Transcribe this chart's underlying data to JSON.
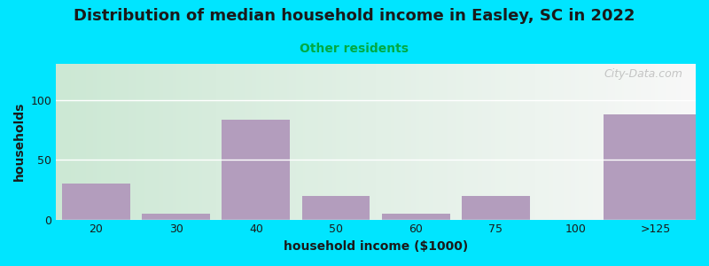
{
  "title": "Distribution of median household income in Easley, SC in 2022",
  "subtitle": "Other residents",
  "xlabel": "household income ($1000)",
  "ylabel": "households",
  "title_color": "#1a1a1a",
  "subtitle_color": "#00aa44",
  "xlabel_color": "#1a1a1a",
  "ylabel_color": "#1a1a1a",
  "bar_color": "#b39dbd",
  "background_outer": "#00e5ff",
  "background_inner_left": "#cce8d4",
  "background_inner_right": "#f8f8f8",
  "categories": [
    "20",
    "30",
    "40",
    "50",
    "60",
    "75",
    "100",
    ">125"
  ],
  "values": [
    30,
    5,
    83,
    20,
    5,
    20,
    0,
    88
  ],
  "ylim": [
    0,
    130
  ],
  "yticks": [
    0,
    50,
    100
  ],
  "watermark": "City-Data.com"
}
